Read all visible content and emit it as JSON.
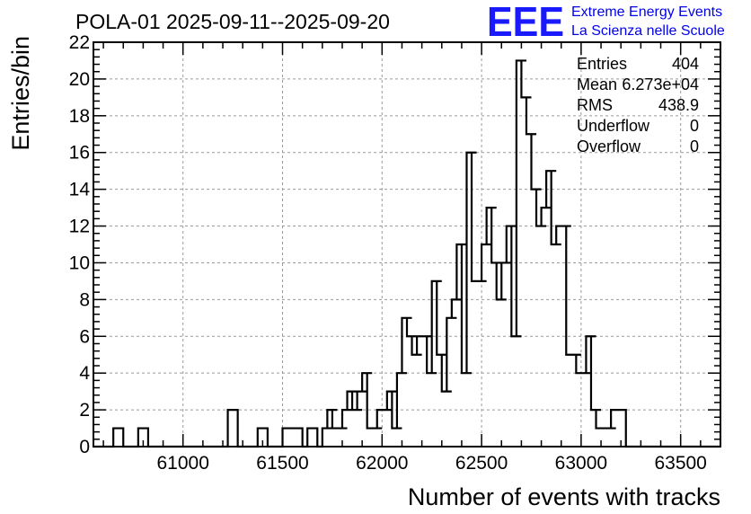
{
  "header": {
    "title": "POLA-01 2025-09-11--2025-09-20"
  },
  "logo": {
    "mark": "EEE",
    "line1": "Extreme Energy Events",
    "line2": "La Scienza nelle Scuole",
    "color": "#1a1aff"
  },
  "stats": {
    "rows": [
      {
        "label": "Entries",
        "value": "404"
      },
      {
        "label": "Mean",
        "value": "6.273e+04"
      },
      {
        "label": "RMS",
        "value": "438.9"
      },
      {
        "label": "Underflow",
        "value": "0"
      },
      {
        "label": "Overflow",
        "value": "0"
      }
    ]
  },
  "chart_data": {
    "type": "histogram",
    "title": "POLA-01 2025-09-11--2025-09-20",
    "xlabel": "Number of events with tracks",
    "ylabel": "Entries/bin",
    "xlim": [
      60550,
      63700
    ],
    "ylim": [
      0,
      22
    ],
    "bin_width": 50,
    "xticks": [
      61000,
      61500,
      62000,
      62500,
      63000,
      63500
    ],
    "xtick_labels": [
      "61000",
      "61500",
      "62000",
      "62500",
      "63000",
      "63500"
    ],
    "yticks": [
      0,
      2,
      4,
      6,
      8,
      10,
      12,
      14,
      16,
      18,
      20,
      22
    ],
    "ytick_labels": [
      "0",
      "2",
      "4",
      "6",
      "8",
      "10",
      "12",
      "14",
      "16",
      "18",
      "20",
      "22"
    ],
    "grid": true,
    "bins": [
      [
        60675,
        1
      ],
      [
        60800,
        1
      ],
      [
        61250,
        2
      ],
      [
        61400,
        1
      ],
      [
        61525,
        1
      ],
      [
        61575,
        1
      ],
      [
        61650,
        1
      ],
      [
        61725,
        1
      ],
      [
        61750,
        2
      ],
      [
        61775,
        1
      ],
      [
        61800,
        1
      ],
      [
        61825,
        2
      ],
      [
        61850,
        3
      ],
      [
        61875,
        2
      ],
      [
        61900,
        3
      ],
      [
        61925,
        4
      ],
      [
        61950,
        1
      ],
      [
        61975,
        1
      ],
      [
        62000,
        2
      ],
      [
        62025,
        2
      ],
      [
        62050,
        3
      ],
      [
        62075,
        1
      ],
      [
        62100,
        4
      ],
      [
        62125,
        7
      ],
      [
        62150,
        6
      ],
      [
        62175,
        5
      ],
      [
        62200,
        6
      ],
      [
        62225,
        6
      ],
      [
        62250,
        4
      ],
      [
        62275,
        9
      ],
      [
        62300,
        5
      ],
      [
        62325,
        3
      ],
      [
        62350,
        7
      ],
      [
        62375,
        8
      ],
      [
        62400,
        11
      ],
      [
        62425,
        4
      ],
      [
        62450,
        16
      ],
      [
        62475,
        9
      ],
      [
        62500,
        9
      ],
      [
        62525,
        11
      ],
      [
        62550,
        13
      ],
      [
        62575,
        10
      ],
      [
        62600,
        8
      ],
      [
        62625,
        10
      ],
      [
        62650,
        12
      ],
      [
        62675,
        6
      ],
      [
        62700,
        21
      ],
      [
        62725,
        19
      ],
      [
        62750,
        17
      ],
      [
        62775,
        14
      ],
      [
        62800,
        12
      ],
      [
        62825,
        13
      ],
      [
        62850,
        15
      ],
      [
        62875,
        11
      ],
      [
        62900,
        12
      ],
      [
        62925,
        12
      ],
      [
        62950,
        5
      ],
      [
        62975,
        5
      ],
      [
        63000,
        4
      ],
      [
        63025,
        4
      ],
      [
        63050,
        6
      ],
      [
        63075,
        2
      ],
      [
        63100,
        1
      ],
      [
        63150,
        1
      ],
      [
        63175,
        2
      ],
      [
        63200,
        2
      ]
    ]
  }
}
